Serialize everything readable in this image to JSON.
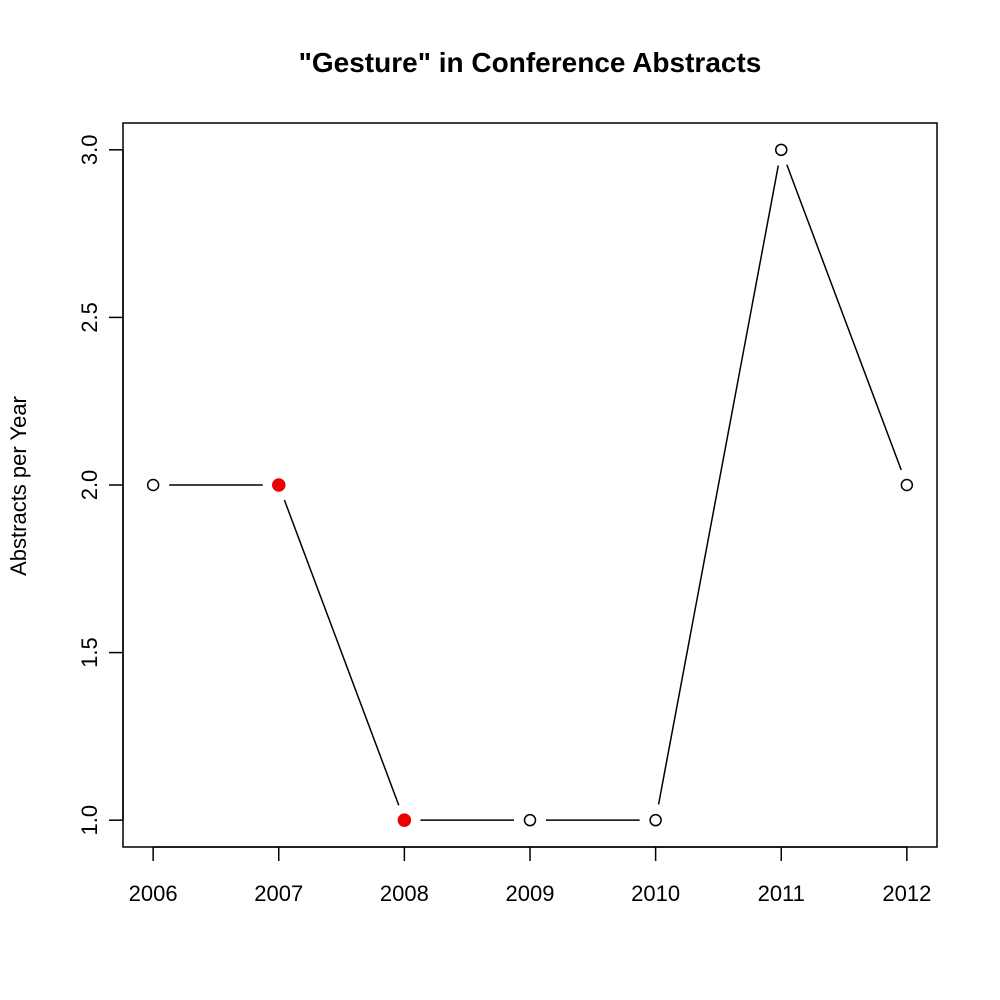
{
  "chart_data": {
    "type": "line",
    "title": "\"Gesture\" in Conference Abstracts",
    "xlabel": "",
    "ylabel": "Abstracts per Year",
    "x": [
      2006,
      2007,
      2008,
      2009,
      2010,
      2011,
      2012
    ],
    "xtick_labels": [
      "2006",
      "2007",
      "2008",
      "2009",
      "2010",
      "2011",
      "2012"
    ],
    "ytick_labels": [
      "1.0",
      "1.5",
      "2.0",
      "2.5",
      "3.0"
    ],
    "yticks": [
      1.0,
      1.5,
      2.0,
      2.5,
      3.0
    ],
    "xlim": [
      2005.76,
      2012.24
    ],
    "ylim": [
      0.92,
      3.08
    ],
    "grid": false,
    "legend": "none",
    "series": [
      {
        "values": [
          2,
          2,
          1,
          1,
          1,
          3,
          2
        ],
        "line_color": "#000000",
        "marker": "open-circle",
        "highlighted_points": [
          2007,
          2008
        ],
        "highlight_color": "#ee0000"
      }
    ]
  }
}
